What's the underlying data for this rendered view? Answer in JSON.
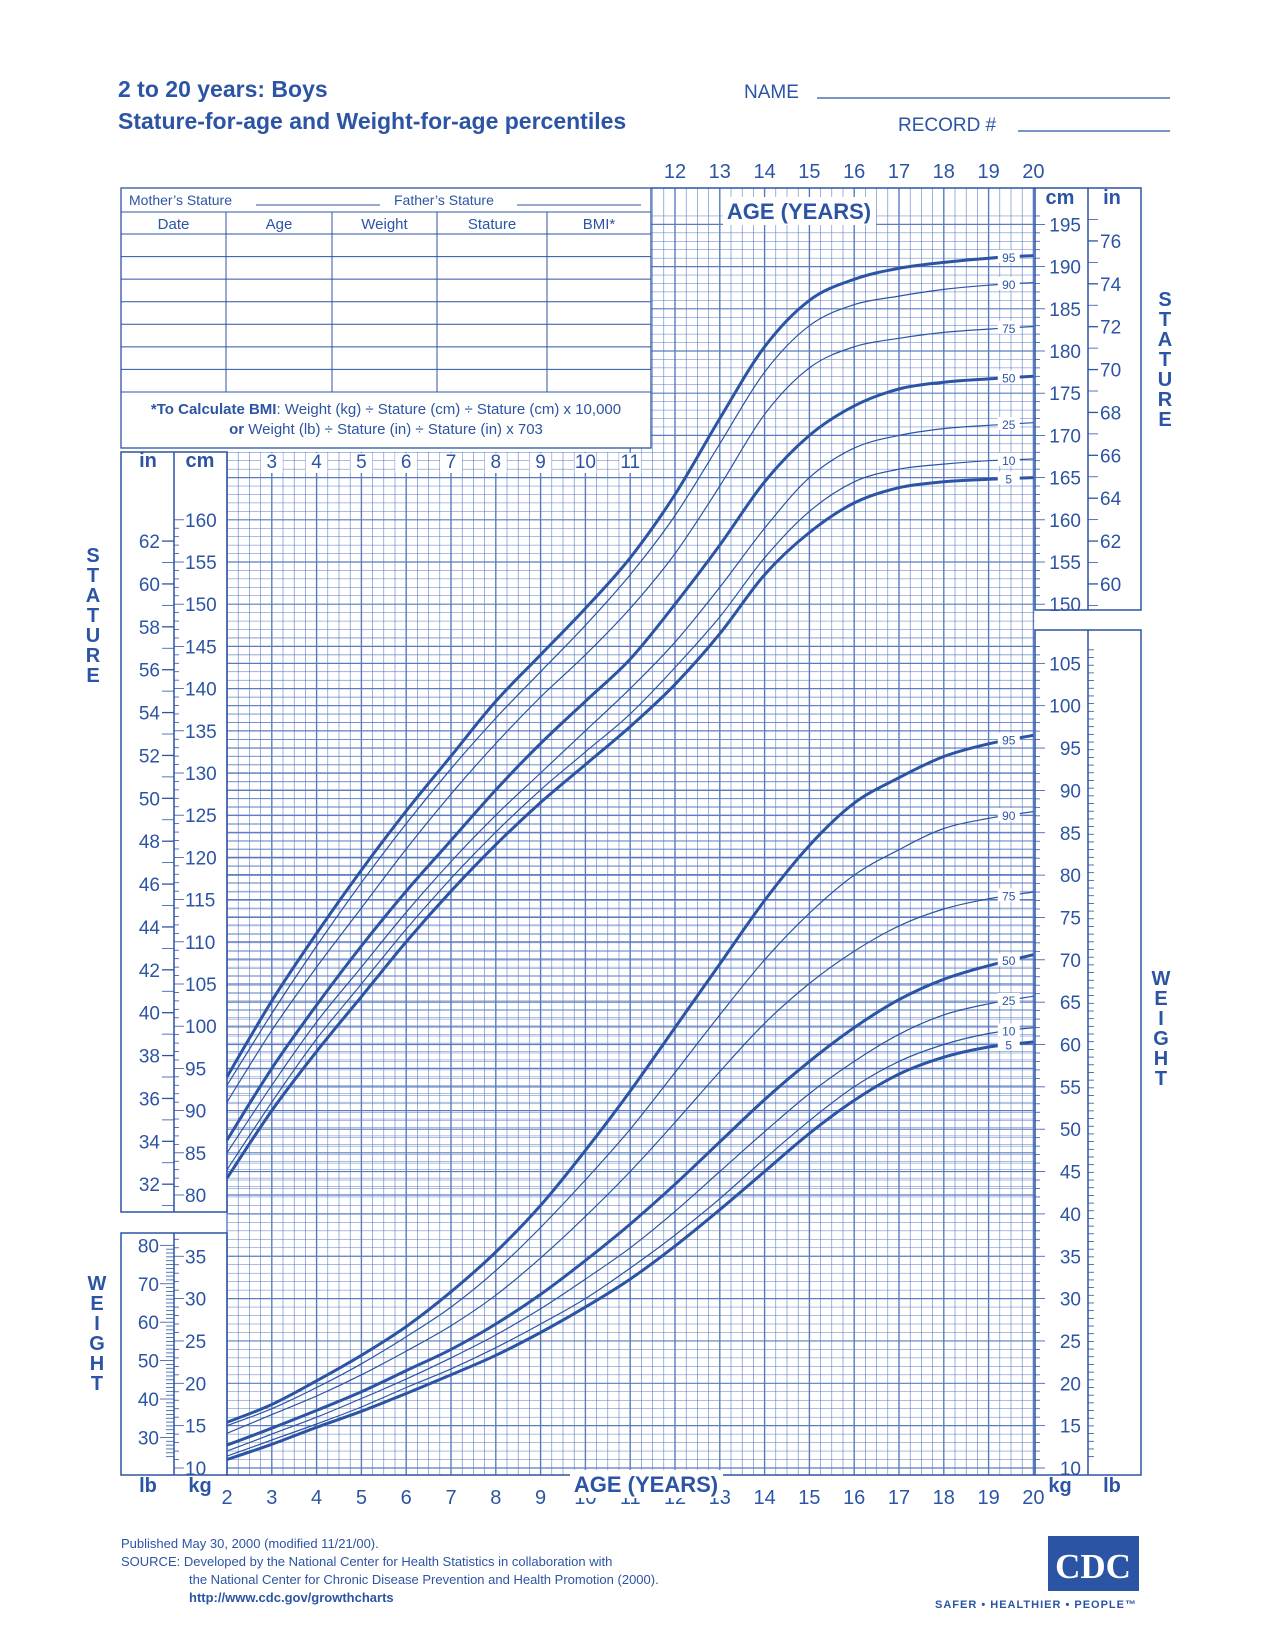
{
  "header": {
    "title_line1": "2 to 20 years: Boys",
    "title_line2": "Stature-for-age and Weight-for-age percentiles",
    "name_label": "NAME",
    "record_label": "RECORD #"
  },
  "record_table": {
    "mother_label": "Mother’s Stature",
    "father_label": "Father’s Stature",
    "columns": [
      "Date",
      "Age",
      "Weight",
      "Stature",
      "BMI*"
    ],
    "row_count": 7,
    "bmi_note_bold": "*To Calculate BMI",
    "bmi_note_line1": ": Weight (kg) ÷ Stature (cm) ÷ Stature (cm) x 10,000",
    "bmi_note_or": "or",
    "bmi_note_line2": " Weight (lb) ÷ Stature (in) ÷ Stature (in) x 703"
  },
  "labels": {
    "stature_word": "STATURE",
    "weight_word": "WEIGHT",
    "age_years": "AGE (YEARS)",
    "in": "in",
    "cm": "cm",
    "lb": "lb",
    "kg": "kg"
  },
  "footer": {
    "published": "Published May 30, 2000 (modified 11/21/00).",
    "source1": "SOURCE: Developed by the National Center for Health Statistics in collaboration with",
    "source2": "the National Center for Chronic Disease Prevention and Health Promotion (2000).",
    "url": "http://www.cdc.gov/growthcharts",
    "logo": "CDC",
    "tagline": "SAFER • HEALTHIER • PEOPLE™"
  },
  "colors": {
    "ink": "#2c54a4",
    "grid": "#5a7bc0",
    "paper": "#ffffff"
  },
  "chart_data": [
    {
      "type": "line",
      "title": "Stature-for-age percentiles",
      "xlabel": "AGE (YEARS)",
      "ylabel": "STATURE",
      "x_unit": "years",
      "y_unit": "cm",
      "xlim": [
        2,
        20
      ],
      "ylim": [
        77,
        196
      ],
      "secondary_axis": "in",
      "grid": true,
      "x": [
        2,
        3,
        4,
        5,
        6,
        7,
        8,
        9,
        10,
        11,
        12,
        13,
        14,
        15,
        16,
        17,
        18,
        19,
        20
      ],
      "series": [
        {
          "name": "95",
          "values": [
            94,
            103,
            111,
            118.5,
            125.5,
            132,
            138.5,
            144,
            149.5,
            155.5,
            163,
            172,
            180.5,
            186,
            188.5,
            189.8,
            190.5,
            191,
            191.3
          ]
        },
        {
          "name": "90",
          "values": [
            93,
            101.5,
            109.5,
            117,
            124,
            130.5,
            136.5,
            142,
            147.5,
            153.5,
            160.5,
            169,
            177.5,
            183,
            185.5,
            186.5,
            187.3,
            187.8,
            188.1
          ]
        },
        {
          "name": "75",
          "values": [
            91,
            99.5,
            107,
            114,
            121,
            127.5,
            133.5,
            139,
            144,
            149.5,
            156,
            164,
            172.5,
            178,
            180.5,
            181.5,
            182.2,
            182.6,
            182.9
          ]
        },
        {
          "name": "50",
          "values": [
            86.5,
            95,
            102.5,
            109.5,
            116,
            122,
            128,
            133.5,
            138.5,
            143.5,
            150,
            157,
            164.5,
            170,
            173.5,
            175.5,
            176.3,
            176.7,
            177
          ]
        },
        {
          "name": "25",
          "values": [
            85,
            93,
            100.5,
            107,
            113.5,
            119.5,
            125,
            130,
            135,
            140,
            145.5,
            152,
            159,
            165,
            168.5,
            170,
            170.8,
            171.2,
            171.5
          ]
        },
        {
          "name": "10",
          "values": [
            83,
            91,
            98.5,
            105,
            111.5,
            117.5,
            123,
            128,
            132.5,
            137,
            142.5,
            148.5,
            155.5,
            161,
            164.5,
            166,
            166.6,
            167,
            167.2
          ]
        },
        {
          "name": "5",
          "values": [
            82,
            90,
            97,
            103.5,
            110,
            116,
            121.5,
            126.5,
            131,
            135.5,
            140.5,
            146.5,
            153.5,
            158.5,
            162,
            163.8,
            164.5,
            164.8,
            165
          ]
        }
      ]
    },
    {
      "type": "line",
      "title": "Weight-for-age percentiles",
      "xlabel": "AGE (YEARS)",
      "ylabel": "WEIGHT",
      "x_unit": "years",
      "y_unit": "kg",
      "xlim": [
        2,
        20
      ],
      "ylim": [
        9,
        110
      ],
      "secondary_axis": "lb",
      "grid": true,
      "x": [
        2,
        3,
        4,
        5,
        6,
        7,
        8,
        9,
        10,
        11,
        12,
        13,
        14,
        15,
        16,
        17,
        18,
        19,
        20
      ],
      "series": [
        {
          "name": "95",
          "values": [
            15.4,
            17.5,
            20.3,
            23.3,
            26.7,
            30.8,
            35.5,
            41,
            47.5,
            54.5,
            62,
            69.5,
            77,
            83.5,
            88.5,
            91.5,
            94,
            95.5,
            96.5
          ]
        },
        {
          "name": "90",
          "values": [
            15,
            17,
            19.5,
            22.3,
            25.5,
            29,
            33.3,
            38.4,
            44,
            50,
            56.7,
            63.5,
            70,
            75.5,
            80,
            83,
            85.5,
            86.7,
            87.5
          ]
        },
        {
          "name": "75",
          "values": [
            14.1,
            16.3,
            18.5,
            21,
            23.8,
            26.8,
            30.4,
            34.8,
            39.7,
            45,
            50.8,
            56.8,
            62.5,
            67.2,
            71,
            74,
            76,
            77.2,
            78
          ]
        },
        {
          "name": "50",
          "values": [
            12.7,
            14.7,
            16.8,
            19,
            21.5,
            24,
            27,
            30.5,
            34.5,
            38.8,
            43.5,
            48.5,
            53.5,
            58,
            62,
            65.3,
            67.7,
            69.3,
            70.6
          ]
        },
        {
          "name": "25",
          "values": [
            12,
            14,
            16,
            18.2,
            20.5,
            23,
            25.7,
            28.8,
            32.3,
            36,
            40.3,
            45,
            49.7,
            54.2,
            58,
            61.2,
            63.5,
            64.8,
            65.7
          ]
        },
        {
          "name": "10",
          "values": [
            11.4,
            13.3,
            15.2,
            17.2,
            19.5,
            21.7,
            24.2,
            27,
            30,
            33.6,
            37.5,
            41.8,
            46.5,
            51,
            55,
            58,
            60,
            61.3,
            62
          ]
        },
        {
          "name": "5",
          "values": [
            11,
            12.8,
            14.8,
            16.7,
            18.8,
            21,
            23.3,
            26,
            29,
            32.3,
            36.2,
            40.5,
            45,
            49.5,
            53.4,
            56.5,
            58.5,
            59.7,
            60.3
          ]
        }
      ]
    }
  ]
}
